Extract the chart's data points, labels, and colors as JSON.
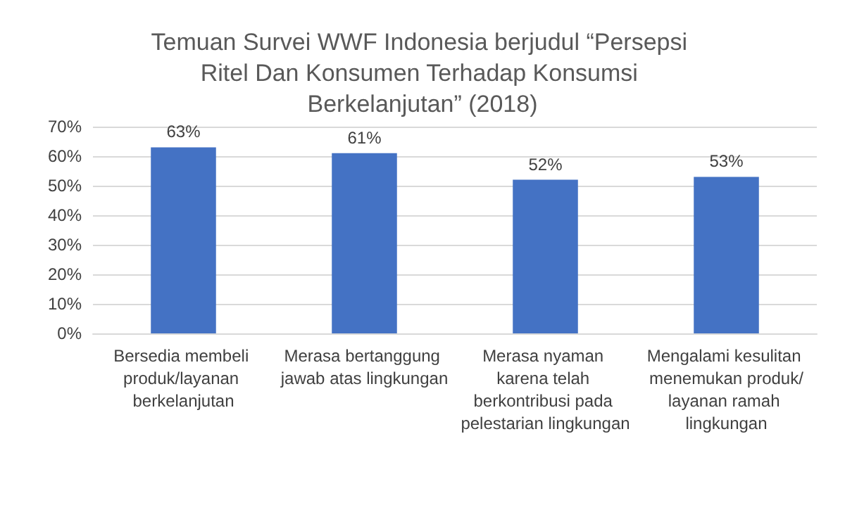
{
  "chart_data": {
    "type": "bar",
    "title": "Temuan Survei WWF Indonesia berjudul “Persepsi Ritel Dan Konsumen Terhadap Konsumsi Berkelanjutan” (2018)",
    "categories": [
      "Bersedia membeli produk/layanan berkelanjutan",
      "Merasa bertanggung jawab atas lingkungan",
      "Merasa nyaman karena telah berkontribusi pada pelestarian lingkungan",
      "Mengalami kesulitan menemukan produk/layanan ramah lingkungan"
    ],
    "values": [
      63,
      61,
      52,
      53
    ],
    "value_labels": [
      "63%",
      "61%",
      "52%",
      "53%"
    ],
    "color": "#4472c4",
    "ylim": [
      0,
      70
    ],
    "yticks": [
      {
        "value": 0,
        "label": "0%"
      },
      {
        "value": 10,
        "label": "10%"
      },
      {
        "value": 20,
        "label": "20%"
      },
      {
        "value": 30,
        "label": "30%"
      },
      {
        "value": 40,
        "label": "40%"
      },
      {
        "value": 50,
        "label": "50%"
      },
      {
        "value": 60,
        "label": "60%"
      },
      {
        "value": 70,
        "label": "70%"
      }
    ],
    "grid": true
  }
}
